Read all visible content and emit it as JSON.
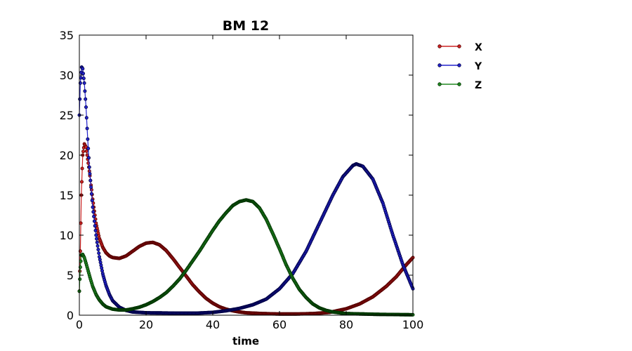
{
  "chart_data": {
    "type": "line",
    "title": "BM 12",
    "xlabel": "time",
    "ylabel": "",
    "xlim": [
      0,
      100
    ],
    "ylim": [
      0,
      35
    ],
    "xticks": [
      0,
      20,
      40,
      60,
      80,
      100
    ],
    "yticks": [
      0,
      5,
      10,
      15,
      20,
      25,
      30,
      35
    ],
    "grid": false,
    "legend": "outside-right",
    "series": [
      {
        "name": "X",
        "color": "#cc2222",
        "dark_color": "#550000",
        "points": [
          [
            0,
            3
          ],
          [
            0.3,
            8
          ],
          [
            0.6,
            15
          ],
          [
            1,
            20
          ],
          [
            1.5,
            21.4
          ],
          [
            2,
            21
          ],
          [
            3,
            18
          ],
          [
            4,
            14.5
          ],
          [
            5,
            11.5
          ],
          [
            6,
            9.6
          ],
          [
            7,
            8.5
          ],
          [
            8,
            7.8
          ],
          [
            9,
            7.4
          ],
          [
            10,
            7.2
          ],
          [
            12,
            7.1
          ],
          [
            14,
            7.4
          ],
          [
            16,
            8
          ],
          [
            18,
            8.6
          ],
          [
            20,
            9
          ],
          [
            22,
            9.1
          ],
          [
            24,
            8.8
          ],
          [
            26,
            8.1
          ],
          [
            28,
            7.1
          ],
          [
            30,
            6
          ],
          [
            32,
            4.9
          ],
          [
            34,
            3.8
          ],
          [
            36,
            2.9
          ],
          [
            38,
            2.1
          ],
          [
            40,
            1.5
          ],
          [
            42,
            1.05
          ],
          [
            44,
            0.75
          ],
          [
            46,
            0.55
          ],
          [
            48,
            0.4
          ],
          [
            50,
            0.3
          ],
          [
            55,
            0.2
          ],
          [
            60,
            0.15
          ],
          [
            65,
            0.15
          ],
          [
            70,
            0.2
          ],
          [
            75,
            0.35
          ],
          [
            80,
            0.8
          ],
          [
            84,
            1.4
          ],
          [
            88,
            2.3
          ],
          [
            92,
            3.6
          ],
          [
            95,
            4.8
          ],
          [
            98,
            6.3
          ],
          [
            100,
            7.2
          ]
        ]
      },
      {
        "name": "Y",
        "color": "#2222cc",
        "dark_color": "#000044",
        "points": [
          [
            0,
            25
          ],
          [
            0.3,
            29
          ],
          [
            0.7,
            31
          ],
          [
            1,
            30.8
          ],
          [
            1.5,
            29
          ],
          [
            2,
            26
          ],
          [
            2.5,
            22
          ],
          [
            3,
            18.5
          ],
          [
            3.5,
            16
          ],
          [
            4,
            13.5
          ],
          [
            5,
            10
          ],
          [
            6,
            7.3
          ],
          [
            7,
            5.2
          ],
          [
            8,
            3.7
          ],
          [
            9,
            2.6
          ],
          [
            10,
            1.8
          ],
          [
            12,
            1
          ],
          [
            14,
            0.6
          ],
          [
            16,
            0.4
          ],
          [
            20,
            0.3
          ],
          [
            30,
            0.25
          ],
          [
            35,
            0.25
          ],
          [
            40,
            0.35
          ],
          [
            44,
            0.55
          ],
          [
            48,
            0.85
          ],
          [
            52,
            1.3
          ],
          [
            56,
            2
          ],
          [
            60,
            3.3
          ],
          [
            64,
            5.2
          ],
          [
            68,
            8
          ],
          [
            72,
            11.5
          ],
          [
            76,
            15
          ],
          [
            79,
            17.3
          ],
          [
            82,
            18.7
          ],
          [
            83,
            18.9
          ],
          [
            85,
            18.6
          ],
          [
            88,
            17
          ],
          [
            91,
            14
          ],
          [
            94,
            10
          ],
          [
            97,
            6.3
          ],
          [
            100,
            3.3
          ]
        ]
      },
      {
        "name": "Z",
        "color": "#228822",
        "dark_color": "#003300",
        "points": [
          [
            0,
            3
          ],
          [
            0.3,
            6
          ],
          [
            0.6,
            7.5
          ],
          [
            1,
            7.6
          ],
          [
            1.5,
            7.2
          ],
          [
            2,
            6.5
          ],
          [
            3,
            5
          ],
          [
            4,
            3.6
          ],
          [
            5,
            2.6
          ],
          [
            6,
            1.9
          ],
          [
            7,
            1.4
          ],
          [
            8,
            1.05
          ],
          [
            10,
            0.75
          ],
          [
            12,
            0.65
          ],
          [
            14,
            0.65
          ],
          [
            16,
            0.8
          ],
          [
            18,
            1
          ],
          [
            20,
            1.3
          ],
          [
            22,
            1.7
          ],
          [
            24,
            2.2
          ],
          [
            26,
            2.8
          ],
          [
            28,
            3.6
          ],
          [
            30,
            4.5
          ],
          [
            32,
            5.6
          ],
          [
            34,
            6.8
          ],
          [
            36,
            8
          ],
          [
            38,
            9.3
          ],
          [
            40,
            10.6
          ],
          [
            42,
            11.8
          ],
          [
            44,
            12.8
          ],
          [
            46,
            13.7
          ],
          [
            48,
            14.2
          ],
          [
            50,
            14.4
          ],
          [
            52,
            14.2
          ],
          [
            54,
            13.4
          ],
          [
            56,
            12
          ],
          [
            58,
            10.2
          ],
          [
            60,
            8.3
          ],
          [
            62,
            6.3
          ],
          [
            64,
            4.6
          ],
          [
            66,
            3.2
          ],
          [
            68,
            2.2
          ],
          [
            70,
            1.4
          ],
          [
            72,
            0.9
          ],
          [
            74,
            0.6
          ],
          [
            76,
            0.4
          ],
          [
            78,
            0.3
          ],
          [
            80,
            0.2
          ],
          [
            85,
            0.15
          ],
          [
            90,
            0.1
          ],
          [
            95,
            0.08
          ],
          [
            100,
            0.05
          ]
        ]
      }
    ]
  }
}
